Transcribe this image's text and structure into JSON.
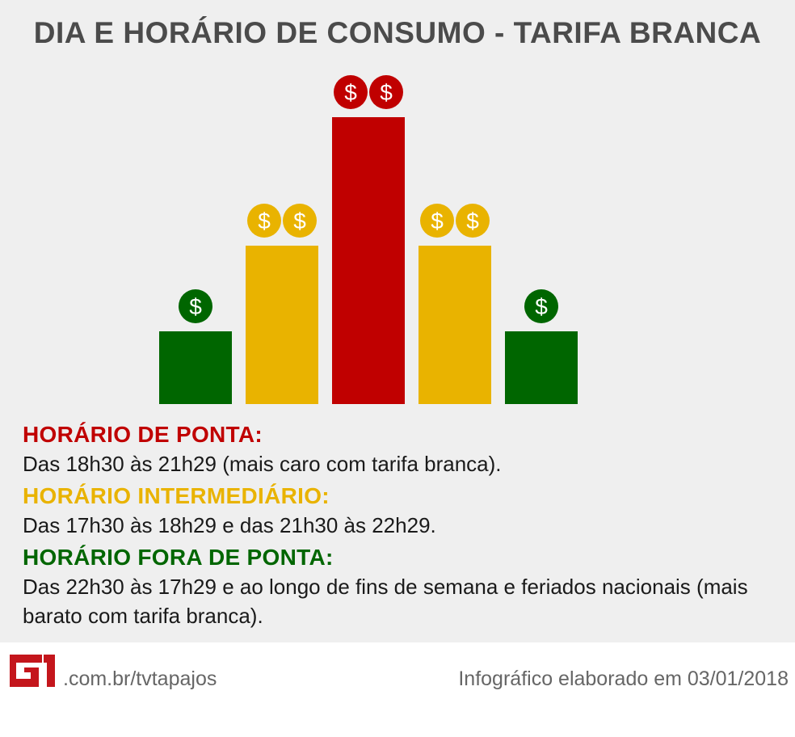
{
  "title": "DIA E HORÁRIO DE CONSUMO - TARIFA BRANCA",
  "colors": {
    "peak": "#c00000",
    "intermediate": "#e9b300",
    "offpeak": "#006600",
    "title": "#4b4b4b",
    "background": "#efefef",
    "logo": "#c4161c"
  },
  "chart_data": {
    "type": "bar",
    "categories": [
      "",
      "",
      "",
      "",
      ""
    ],
    "values": [
      2,
      4,
      7,
      4,
      2
    ],
    "coins_per_bar": [
      1,
      2,
      2,
      2,
      1
    ],
    "coin_symbol": "$",
    "bar_colors": [
      "#006600",
      "#e9b300",
      "#c00000",
      "#e9b300",
      "#006600"
    ],
    "title": "DIA E HORÁRIO DE CONSUMO - TARIFA BRANCA",
    "xlabel": "",
    "ylabel": "",
    "grid": false
  },
  "legend": [
    {
      "heading": "HORÁRIO DE PONTA:",
      "text": "Das 18h30 às 21h29 (mais caro com tarifa branca).",
      "color": "#c00000"
    },
    {
      "heading": "HORÁRIO INTERMEDIÁRIO:",
      "text": "Das 17h30 às 18h29 e das 21h30 às 22h29.",
      "color": "#e9b300"
    },
    {
      "heading": "HORÁRIO FORA DE PONTA:",
      "text": "Das 22h30 às 17h29 e ao longo de fins de semana e feriados nacionais (mais barato com tarifa branca).",
      "color": "#006600"
    }
  ],
  "footer": {
    "logo_text": "G1",
    "site": ".com.br/tvtapajos",
    "credit": "Infográfico elaborado em 03/01/2018"
  }
}
